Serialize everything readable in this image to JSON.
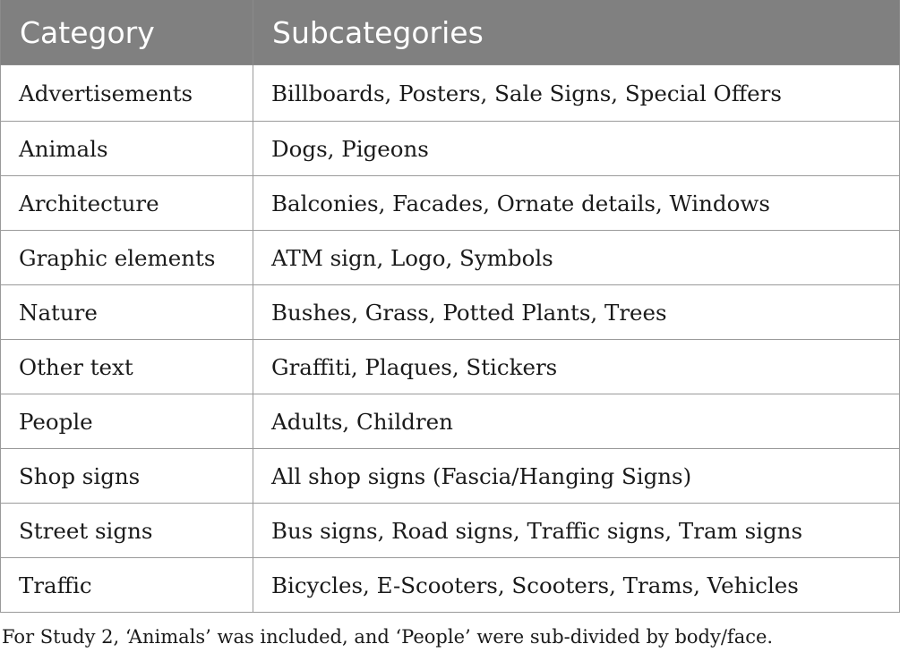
{
  "table": {
    "headers": [
      "Category",
      "Subcategories"
    ],
    "rows": [
      {
        "category": "Advertisements",
        "subcategories": "Billboards, Posters, Sale Signs, Special Offers"
      },
      {
        "category": "Animals",
        "subcategories": "Dogs, Pigeons"
      },
      {
        "category": "Architecture",
        "subcategories": "Balconies, Facades, Ornate details, Windows"
      },
      {
        "category": "Graphic elements",
        "subcategories": "ATM sign, Logo, Symbols"
      },
      {
        "category": "Nature",
        "subcategories": "Bushes, Grass, Potted Plants, Trees"
      },
      {
        "category": "Other text",
        "subcategories": "Graffiti, Plaques, Stickers"
      },
      {
        "category": "People",
        "subcategories": "Adults, Children"
      },
      {
        "category": "Shop signs",
        "subcategories": "All shop signs (Fascia/Hanging Signs)"
      },
      {
        "category": "Street signs",
        "subcategories": "Bus signs, Road signs, Traffic signs, Tram signs"
      },
      {
        "category": "Traffic",
        "subcategories": "Bicycles, E-Scooters, Scooters, Trams, Vehicles"
      }
    ],
    "header_bg": "#808080",
    "header_text_color": "#ffffff"
  },
  "footnote": "For Study 2, ‘Animals’ was included, and ‘People’ were sub-divided by body/face."
}
